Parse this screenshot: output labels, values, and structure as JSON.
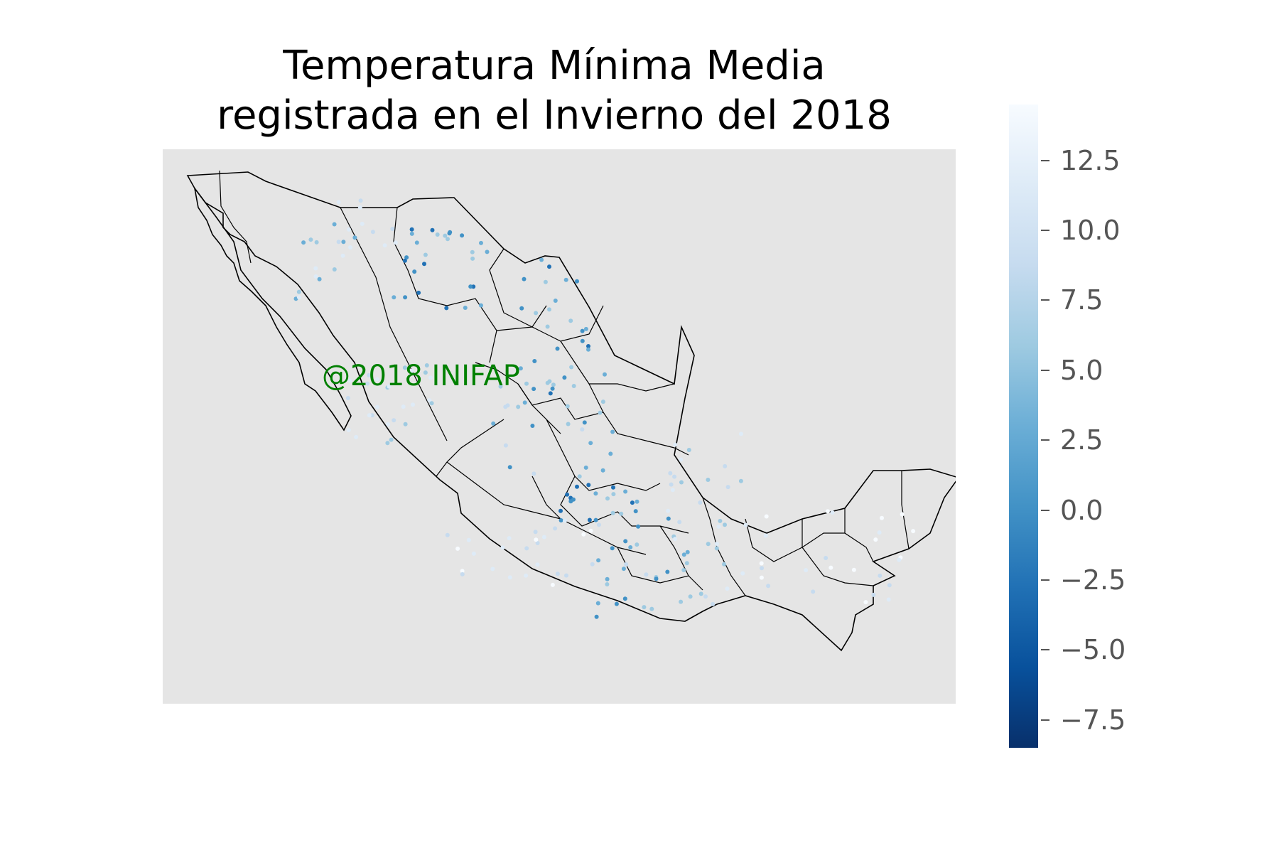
{
  "title": {
    "line1": "Temperatura Mínima Media",
    "line2": "registrada en el Invierno del 2018"
  },
  "watermark": "@2018 INIFAP",
  "colorbar": {
    "colormap": "Blues_r",
    "range": [
      -8.5,
      14.5
    ],
    "ticks": [
      {
        "value": 12.5,
        "label": "12.5"
      },
      {
        "value": 10.0,
        "label": "10.0"
      },
      {
        "value": 7.5,
        "label": "7.5"
      },
      {
        "value": 5.0,
        "label": "5.0"
      },
      {
        "value": 2.5,
        "label": "2.5"
      },
      {
        "value": 0.0,
        "label": "0.0"
      },
      {
        "value": -2.5,
        "label": "−2.5"
      },
      {
        "value": -5.0,
        "label": "−5.0"
      },
      {
        "value": -7.5,
        "label": "−7.5"
      }
    ]
  },
  "chart_data": {
    "type": "scatter",
    "description": "Weather-station points over a map of Mexico with state borders, colored by mean minimum winter temperature",
    "background_color": "#e5e5e5",
    "border_color": "#000000",
    "watermark_color": "#008000"
  }
}
